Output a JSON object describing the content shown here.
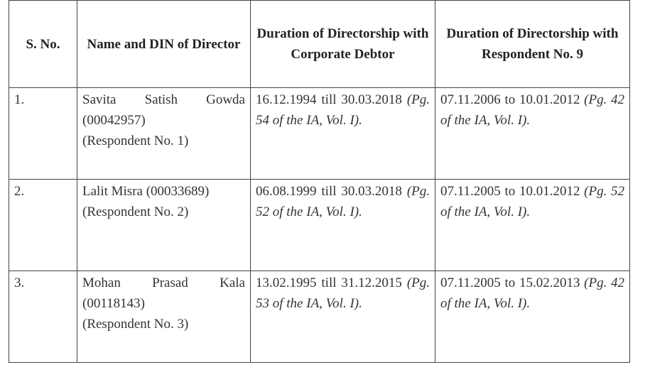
{
  "table": {
    "header": [
      "S. No.",
      "Name and DIN of Director",
      "Duration of Directorship with Corporate Debtor",
      "Duration of Directorship with Respondent No. 9"
    ],
    "rows": [
      [
        {
          "number": "1."
        },
        {
          "name_din": "Savita Satish Gowda (00042957)",
          "respondent": "(Respondent No. 1)"
        },
        {
          "period": "16.12.1994 till 30.03.2018",
          "reference": "(Pg. 54 of the IA, Vol. I)."
        },
        {
          "period": "07.11.2006 to 10.01.2012",
          "reference": "(Pg. 42 of the IA, Vol. I)."
        }
      ],
      [
        {
          "number": "2."
        },
        {
          "name_din": "Lalit Misra (00033689)",
          "respondent": "(Respondent No. 2)"
        },
        {
          "period": "06.08.1999 till 30.03.2018",
          "reference": "(Pg. 52 of the IA, Vol. I)."
        },
        {
          "period": "07.11.2005 to 10.01.2012",
          "reference": "(Pg. 52 of the IA, Vol. I)."
        }
      ],
      [
        {
          "number": "3."
        },
        {
          "name_din": "Mohan Prasad Kala (00118143)",
          "respondent": "(Respondent No. 3)"
        },
        {
          "period": "13.02.1995 till 31.12.2015",
          "reference": "(Pg. 53 of the IA, Vol. I)."
        },
        {
          "period": "07.11.2005 to 15.02.2013",
          "reference": "(Pg. 42 of the IA, Vol. I)."
        }
      ]
    ]
  }
}
